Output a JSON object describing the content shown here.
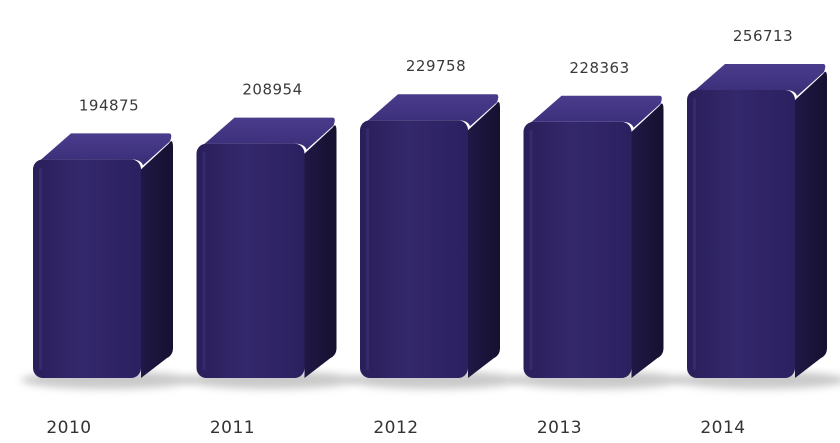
{
  "chart_data": {
    "type": "bar",
    "categories": [
      "2010",
      "2011",
      "2012",
      "2013",
      "2014"
    ],
    "values": [
      194875,
      208954,
      229758,
      228363,
      256713
    ],
    "data_labels": [
      "194875",
      "208954",
      "229758",
      "228363",
      "256713"
    ],
    "title": "",
    "xlabel": "",
    "ylabel": "",
    "grid": false,
    "legend": "none",
    "bar_style": "3d",
    "colors": {
      "bar_front": "#2e2260",
      "bar_top": "#3b2e78",
      "bar_side": "#1c1640",
      "floor_shadow": "#c8c8c8",
      "label_text": "#3a3a3a"
    }
  }
}
